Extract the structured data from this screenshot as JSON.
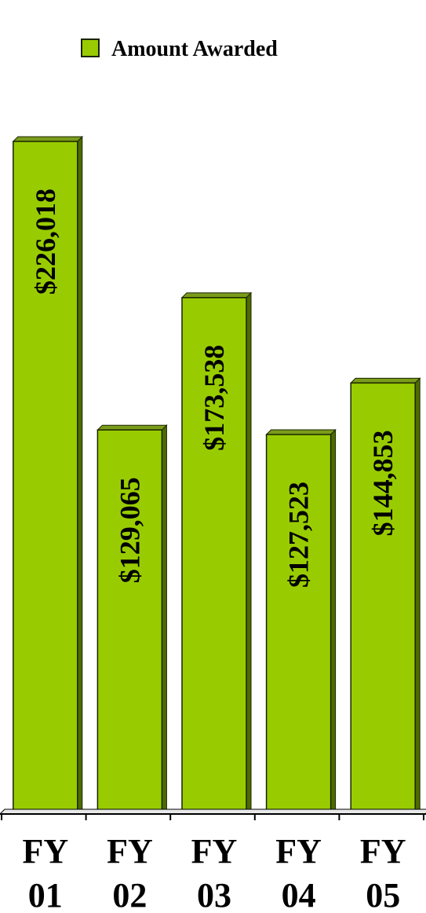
{
  "chart_data": {
    "type": "bar",
    "categories": [
      [
        "FY",
        "01"
      ],
      [
        "FY",
        "02"
      ],
      [
        "FY",
        "03"
      ],
      [
        "FY",
        "04"
      ],
      [
        "FY",
        "05"
      ]
    ],
    "series": [
      {
        "name": "Amount Awarded",
        "values": [
          226018,
          129065,
          173538,
          127523,
          144853
        ],
        "data_labels": [
          "$226,018",
          "$129,065",
          "$173,538",
          "$127,523",
          "$144,853"
        ]
      }
    ],
    "title": "",
    "xlabel": "",
    "ylabel": "",
    "ylim": [
      0,
      226018
    ],
    "grid": false,
    "legend_position": "top-center",
    "style": "3d-column",
    "colors": {
      "bar_front": "#99CC00",
      "bar_top": "#7a9c1a",
      "bar_side": "#4d6b00",
      "edge": "#1a2400",
      "axis": "#000000"
    }
  }
}
